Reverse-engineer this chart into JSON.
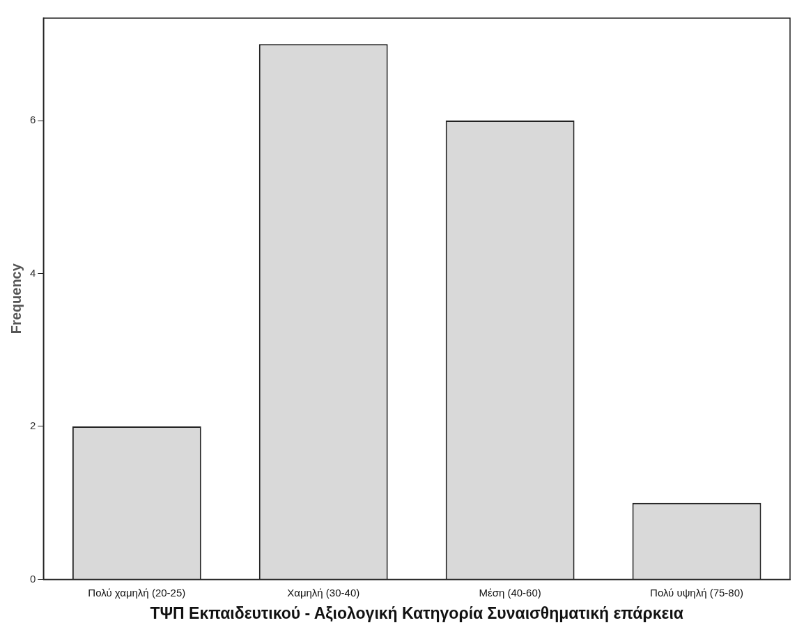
{
  "chart_data": {
    "type": "bar",
    "xlabel": "ΤΨΠ Εκπαιδευτικού - Αξιολογική Κατηγορία Συναισθηματική επάρκεια",
    "ylabel": "Frequency",
    "categories": [
      "Πολύ χαμηλή (20-25)",
      "Χαμηλή (30-40)",
      "Μέση (40-60)",
      "Πολύ υψηλή (75-80)"
    ],
    "values": [
      2,
      7,
      6,
      1
    ],
    "color": "#d9d9d9",
    "ylim": [
      0,
      7.34
    ],
    "yticks": [
      0,
      2,
      4,
      6
    ]
  }
}
